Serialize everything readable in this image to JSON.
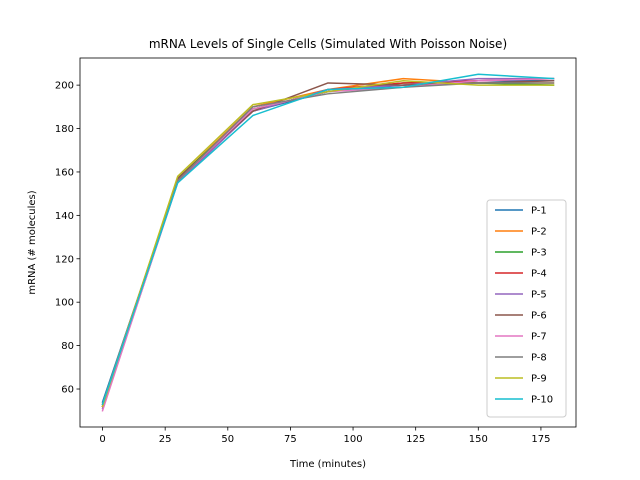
{
  "chart_data": {
    "type": "line",
    "title": "mRNA Levels of Single Cells (Simulated With Poisson Noise)",
    "xlabel": "Time (minutes)",
    "ylabel": "mRNA (# molecules)",
    "xlim": [
      -9,
      189
    ],
    "ylim": [
      42.5,
      212.5
    ],
    "xticks": [
      0,
      25,
      50,
      75,
      100,
      125,
      150,
      175
    ],
    "yticks": [
      60,
      80,
      100,
      120,
      140,
      160,
      180,
      200
    ],
    "grid": false,
    "legend_position": "lower right",
    "x": [
      0,
      30,
      60,
      90,
      120,
      150,
      180
    ],
    "series": [
      {
        "name": "P-1",
        "color": "#1f77b4",
        "values": [
          54,
          156,
          188,
          197,
          200,
          202,
          202
        ]
      },
      {
        "name": "P-2",
        "color": "#ff7f0e",
        "values": [
          53,
          157,
          190,
          198,
          203,
          201,
          201
        ]
      },
      {
        "name": "P-3",
        "color": "#2ca02c",
        "values": [
          52,
          157,
          189,
          197,
          201,
          201,
          200
        ]
      },
      {
        "name": "P-4",
        "color": "#d62728",
        "values": [
          52,
          156,
          188,
          198,
          201,
          202,
          203
        ]
      },
      {
        "name": "P-5",
        "color": "#9467bd",
        "values": [
          51,
          155,
          188,
          198,
          200,
          203,
          203
        ]
      },
      {
        "name": "P-6",
        "color": "#8c564b",
        "values": [
          52,
          157,
          188,
          201,
          200,
          201,
          202
        ]
      },
      {
        "name": "P-7",
        "color": "#e377c2",
        "values": [
          50,
          156,
          189,
          197,
          199,
          202,
          203
        ]
      },
      {
        "name": "P-8",
        "color": "#7f7f7f",
        "values": [
          53,
          156,
          190,
          196,
          199,
          201,
          201
        ]
      },
      {
        "name": "P-9",
        "color": "#bcbd22",
        "values": [
          52,
          158,
          191,
          197,
          202,
          200,
          200
        ]
      },
      {
        "name": "P-10",
        "color": "#17becf",
        "values": [
          53,
          155,
          186,
          198,
          199,
          205,
          203
        ]
      }
    ]
  }
}
